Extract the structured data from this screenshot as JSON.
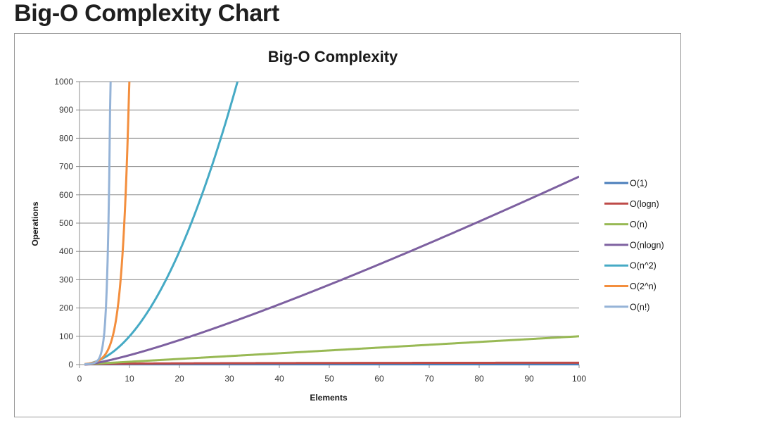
{
  "page": {
    "heading": "Big-O Complexity Chart"
  },
  "chart_data": {
    "type": "line",
    "title": "Big-O Complexity",
    "xlabel": "Elements",
    "ylabel": "Operations",
    "xlim": [
      0,
      100
    ],
    "ylim": [
      0,
      1000
    ],
    "x_ticks": [
      0,
      10,
      20,
      30,
      40,
      50,
      60,
      70,
      80,
      90,
      100
    ],
    "y_ticks": [
      0,
      100,
      200,
      300,
      400,
      500,
      600,
      700,
      800,
      900,
      1000
    ],
    "grid": "horizontal",
    "legend_position": "right",
    "series": [
      {
        "name": "O(1)",
        "color": "#4a7ebb",
        "formula": "1"
      },
      {
        "name": "O(logn)",
        "color": "#be4b48",
        "formula": "log2(n)"
      },
      {
        "name": "O(n)",
        "color": "#98b954",
        "formula": "n"
      },
      {
        "name": "O(nlogn)",
        "color": "#7d60a0",
        "formula": "n*log2(n)"
      },
      {
        "name": "O(n^2)",
        "color": "#46aac5",
        "formula": "n^2"
      },
      {
        "name": "O(2^n)",
        "color": "#f38e3d",
        "formula": "2^n"
      },
      {
        "name": "O(n!)",
        "color": "#95b3d7",
        "formula": "n!"
      }
    ]
  }
}
